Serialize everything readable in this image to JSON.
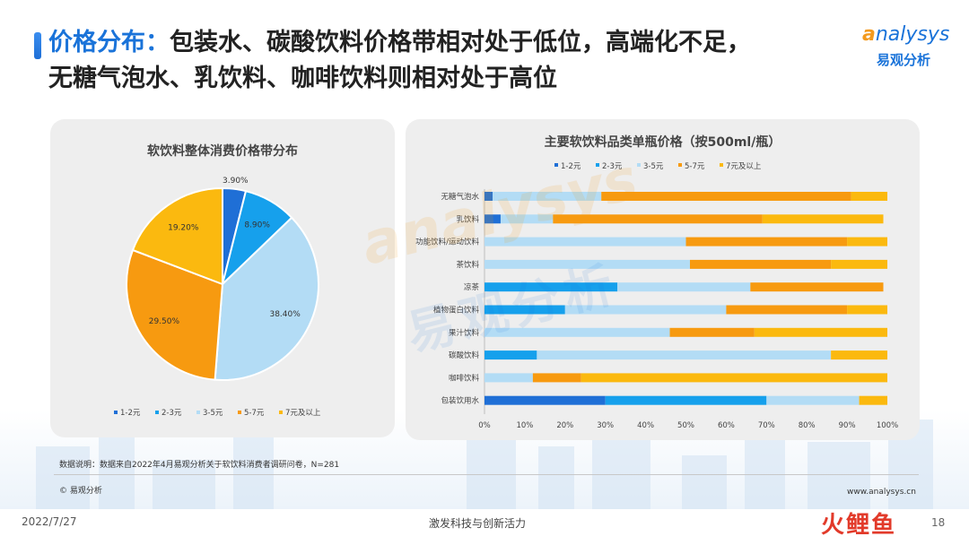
{
  "header": {
    "title_accent": "价格分布：",
    "title_line1": "包装水、碳酸饮料价格带相对处于低位，高端化不足，",
    "title_line2": "无糖气泡水、乳饮料、咖啡饮料则相对处于高位"
  },
  "logo": {
    "word": "nalysys",
    "letter": "a",
    "cn": "易观分析"
  },
  "watermark": {
    "word": "nalysys",
    "letter": "a",
    "cn": "易观分析"
  },
  "colors": {
    "c1": "#1f6fd6",
    "c2": "#16a0ec",
    "c3": "#b3dcf5",
    "c4": "#f79a10",
    "c5": "#fbb90f"
  },
  "chart_data": [
    {
      "type": "pie",
      "title": "软饮料整体消费价格带分布",
      "categories": [
        "1-2元",
        "2-3元",
        "3-5元",
        "5-7元",
        "7元及以上"
      ],
      "values": [
        3.9,
        8.9,
        38.4,
        29.5,
        19.2
      ],
      "value_labels": [
        "3.90%",
        "8.90%",
        "38.40%",
        "29.50%",
        "19.20%"
      ],
      "legend": "bottom"
    },
    {
      "type": "bar",
      "orientation": "horizontal",
      "stacked": true,
      "title": "主要软饮料品类单瓶价格（按500ml/瓶）",
      "categories": [
        "无糖气泡水",
        "乳饮料",
        "功能饮料/运动饮料",
        "茶饮料",
        "凉茶",
        "植物蛋白饮料",
        "果汁饮料",
        "碳酸饮料",
        "咖啡饮料",
        "包装饮用水"
      ],
      "series": [
        {
          "name": "1-2元",
          "values": [
            2,
            4,
            0,
            0,
            0,
            0,
            0,
            0,
            0,
            30
          ]
        },
        {
          "name": "2-3元",
          "values": [
            0,
            0,
            0,
            0,
            33,
            20,
            0,
            13,
            0,
            40
          ]
        },
        {
          "name": "3-5元",
          "values": [
            27,
            13,
            50,
            51,
            33,
            40,
            46,
            73,
            12,
            23
          ]
        },
        {
          "name": "5-7元",
          "values": [
            62,
            52,
            40,
            35,
            33,
            30,
            21,
            0,
            12,
            0
          ]
        },
        {
          "name": "7元及以上",
          "values": [
            9,
            30,
            10,
            14,
            0,
            10,
            33,
            14,
            76,
            7
          ]
        }
      ],
      "xlim": [
        0,
        100
      ],
      "xticks": [
        "0%",
        "10%",
        "20%",
        "30%",
        "40%",
        "50%",
        "60%",
        "70%",
        "80%",
        "90%",
        "100%"
      ],
      "legend": "top"
    }
  ],
  "footnote": "数据说明：数据来自2022年4月易观分析关于软饮料消费者调研问卷，N=281",
  "copyright": "© 易观分析",
  "website": "www.analysys.cn",
  "footer": {
    "date": "2022/7/27",
    "center": "激发科技与创新活力",
    "page": "18",
    "brand": "火鲤鱼"
  }
}
